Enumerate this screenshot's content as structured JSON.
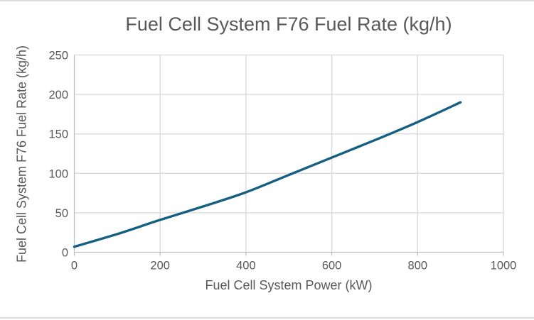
{
  "chart_data": {
    "type": "line",
    "title": "Fuel Cell System F76 Fuel Rate (kg/h)",
    "xlabel": "Fuel Cell System Power (kW)",
    "ylabel": "Fuel Cell System F76 Fuel Rate (kg/h)",
    "x": [
      0,
      100,
      200,
      300,
      400,
      500,
      600,
      700,
      800,
      900
    ],
    "y": [
      7,
      23,
      41,
      58,
      76,
      98,
      120,
      142,
      165,
      190
    ],
    "xlim": [
      0,
      1000
    ],
    "ylim": [
      0,
      250
    ],
    "xticks": [
      0,
      200,
      400,
      600,
      800,
      1000
    ],
    "yticks": [
      0,
      50,
      100,
      150,
      200,
      250
    ],
    "grid": true,
    "legend_position": "none",
    "colors": {
      "line": "#156082",
      "text": "#595959",
      "grid": "#d9d9d9",
      "axis": "#bfbfbf",
      "background": "#ffffff",
      "border": "#dcdcdc"
    }
  }
}
